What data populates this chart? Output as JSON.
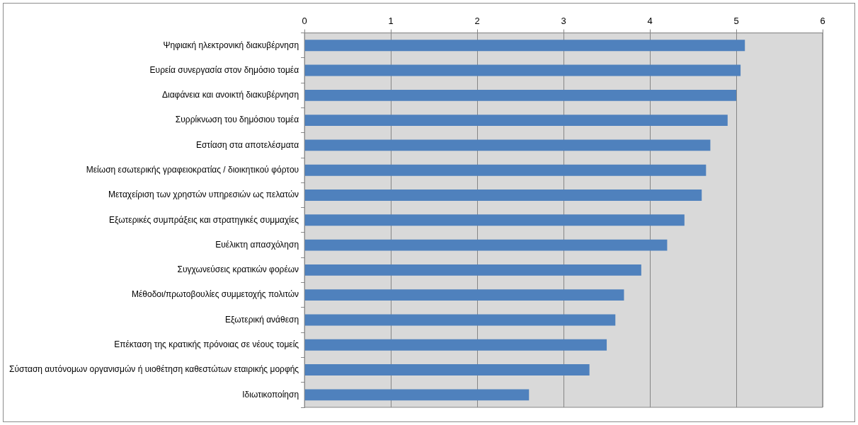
{
  "chart_data": {
    "type": "bar",
    "orientation": "horizontal",
    "categories": [
      "Ψηφιακή ηλεκτρονική διακυβέρνηση",
      "Ευρεία συνεργασία στον δημόσιο τομέα",
      "Διαφάνεια και ανοικτή διακυβέρνηση",
      "Συρρίκνωση του δημόσιου τομέα",
      "Εστίαση στα αποτελέσματα",
      "Μείωση εσωτερικής γραφειοκρατίας / διοικητικού φόρτου",
      "Μεταχείριση των χρηστών υπηρεσιών ως πελατών",
      "Εξωτερικές συμπράξεις και στρατηγικές συμμαχίες",
      "Ευέλικτη απασχόληση",
      "Συγχωνεύσεις κρατικών φορέων",
      "Μέθοδοι/πρωτοβουλίες συμμετοχής πολιτών",
      "Εξωτερική ανάθεση",
      "Επέκταση της κρατικής πρόνοιας σε νέους τομείς",
      "Σύσταση αυτόνομων οργανισμών ή υιοθέτηση καθεστώτων εταιρικής μορφής",
      "Ιδιωτικοποίηση"
    ],
    "values": [
      5.1,
      5.05,
      5.0,
      4.9,
      4.7,
      4.65,
      4.6,
      4.4,
      4.2,
      3.9,
      3.7,
      3.6,
      3.5,
      3.3,
      2.6
    ],
    "color": "#4f81bd",
    "xlim": [
      0,
      6
    ],
    "xticks": [
      0,
      1,
      2,
      3,
      4,
      5,
      6
    ],
    "grid": "x",
    "legend": false
  }
}
